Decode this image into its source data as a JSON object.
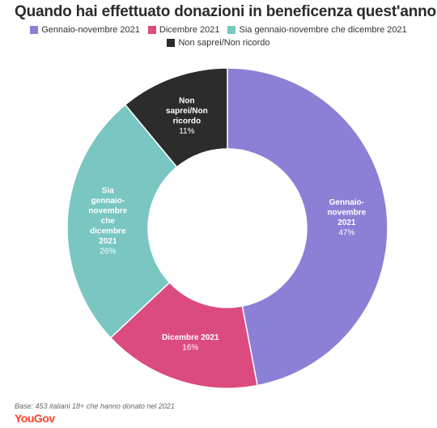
{
  "chart_data": {
    "type": "pie",
    "title": "Quando hai effettuato donazioni in beneficenza quest'anno?",
    "categories": [
      "Gennaio-novembre 2021",
      "Dicembre 2021",
      "Sia gennaio-novembre che dicembre 2021",
      "Non saprei/Non ricordo"
    ],
    "values": [
      47,
      16,
      26,
      11
    ],
    "value_suffix": "%",
    "colors": [
      "#8b7fd6",
      "#dc4b7f",
      "#79c6c2",
      "#2c2c2c"
    ],
    "slice_labels": [
      [
        "Gennaio-",
        "novembre",
        "2021"
      ],
      [
        "Dicembre 2021"
      ],
      [
        "Sia",
        "gennaio-",
        "novembre",
        "che",
        "dicembre",
        "2021"
      ],
      [
        "Non",
        "saprei/Non",
        "ricordo"
      ]
    ],
    "legend_placement": "top",
    "donut": true
  },
  "footnote": "Base: 453 italiani 18+ che hanno donato nel 2021",
  "brand": "YouGov"
}
